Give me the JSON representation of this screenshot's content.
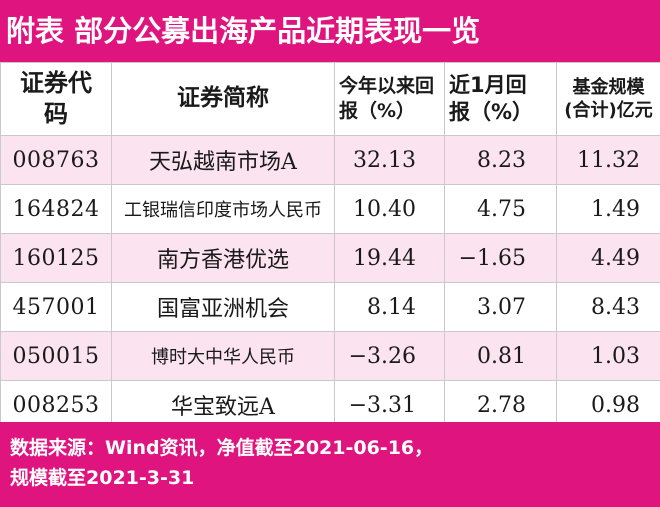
{
  "title": "附表  部分公募出海产品近期表现一览",
  "table": {
    "headers": {
      "code_line1": "证券代",
      "code_line2": "码",
      "name": "证券简称",
      "ytd_line1": "今年以来回",
      "ytd_line2": "报（%）",
      "m1_line1": "近1月回",
      "m1_line2": "报（%）",
      "scale_line1": "基金规模",
      "scale_line2": "(合计)亿元"
    },
    "rows": [
      {
        "code": "008763",
        "name": "天弘越南市场A",
        "ytd": "32.13",
        "m1": "8.23",
        "scale": "11.32"
      },
      {
        "code": "164824",
        "name": "工银瑞信印度市场人民币",
        "ytd": "10.40",
        "m1": "4.75",
        "scale": "1.49"
      },
      {
        "code": "160125",
        "name": "南方香港优选",
        "ytd": "19.44",
        "m1": "−1.65",
        "scale": "4.49"
      },
      {
        "code": "457001",
        "name": "国富亚洲机会",
        "ytd": "8.14",
        "m1": "3.07",
        "scale": "8.43"
      },
      {
        "code": "050015",
        "name": "博时大中华人民币",
        "ytd": "−3.26",
        "m1": "0.81",
        "scale": "1.03"
      },
      {
        "code": "008253",
        "name": "华宝致远A",
        "ytd": "−3.31",
        "m1": "2.78",
        "scale": "0.98"
      }
    ]
  },
  "footer": {
    "line1": "数据来源：Wind资讯，净值截至2021-06-16，",
    "line2": "规模截至2021-3-31"
  },
  "colors": {
    "accent": "#e0147f",
    "row_shade": "#fbe3ef"
  }
}
